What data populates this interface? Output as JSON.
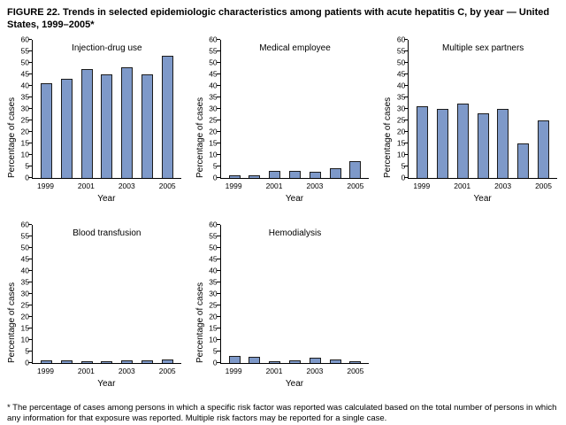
{
  "figure": {
    "title": "FIGURE 22. Trends in selected epidemiologic characteristics among patients with acute hepatitis C, by year — United States, 1999–2005*",
    "footnote": "* The percentage of cases among persons in which a specific risk factor was reported was calculated based on the total number of persons in which any information for that exposure was reported. Multiple risk factors may be reported for a single case."
  },
  "bar_color": "#7E99C9",
  "chart_data": [
    {
      "type": "bar",
      "title": "Injection-drug use",
      "categories": [
        "1999",
        "2000",
        "2001",
        "2002",
        "2003",
        "2004",
        "2005"
      ],
      "values": [
        41,
        43,
        47,
        45,
        48,
        45,
        53
      ],
      "xlabel": "Year",
      "ylabel": "Percentage of cases",
      "ylim": [
        0,
        60
      ],
      "ytick_step": 5,
      "x_tick_labels": [
        "1999",
        "2001",
        "2003",
        "2005"
      ],
      "grid": false,
      "legend": "none"
    },
    {
      "type": "bar",
      "title": "Medical employee",
      "categories": [
        "1999",
        "2000",
        "2001",
        "2002",
        "2003",
        "2004",
        "2005"
      ],
      "values": [
        1,
        1,
        3,
        3,
        2.5,
        4,
        7
      ],
      "xlabel": "Year",
      "ylabel": "Percentage of cases",
      "ylim": [
        0,
        60
      ],
      "ytick_step": 5,
      "x_tick_labels": [
        "1999",
        "2001",
        "2003",
        "2005"
      ],
      "grid": false,
      "legend": "none"
    },
    {
      "type": "bar",
      "title": "Multiple sex partners",
      "categories": [
        "1999",
        "2000",
        "2001",
        "2002",
        "2003",
        "2004",
        "2005"
      ],
      "values": [
        31,
        30,
        32,
        28,
        30,
        15,
        25
      ],
      "xlabel": "Year",
      "ylabel": "Percentage of cases",
      "ylim": [
        0,
        60
      ],
      "ytick_step": 5,
      "x_tick_labels": [
        "1999",
        "2001",
        "2003",
        "2005"
      ],
      "grid": false,
      "legend": "none"
    },
    {
      "type": "bar",
      "title": "Blood transfusion",
      "categories": [
        "1999",
        "2000",
        "2001",
        "2002",
        "2003",
        "2004",
        "2005"
      ],
      "values": [
        1,
        1,
        0.5,
        0.5,
        1,
        1,
        1.5
      ],
      "xlabel": "Year",
      "ylabel": "Percentage of cases",
      "ylim": [
        0,
        60
      ],
      "ytick_step": 5,
      "x_tick_labels": [
        "1999",
        "2001",
        "2003",
        "2005"
      ],
      "grid": false,
      "legend": "none"
    },
    {
      "type": "bar",
      "title": "Hemodialysis",
      "categories": [
        "1999",
        "2000",
        "2001",
        "2002",
        "2003",
        "2004",
        "2005"
      ],
      "values": [
        3,
        2.5,
        0.5,
        1,
        2,
        1.5,
        0.5
      ],
      "xlabel": "Year",
      "ylabel": "Percentage of cases",
      "ylim": [
        0,
        60
      ],
      "ytick_step": 5,
      "x_tick_labels": [
        "1999",
        "2001",
        "2003",
        "2005"
      ],
      "grid": false,
      "legend": "none"
    }
  ]
}
